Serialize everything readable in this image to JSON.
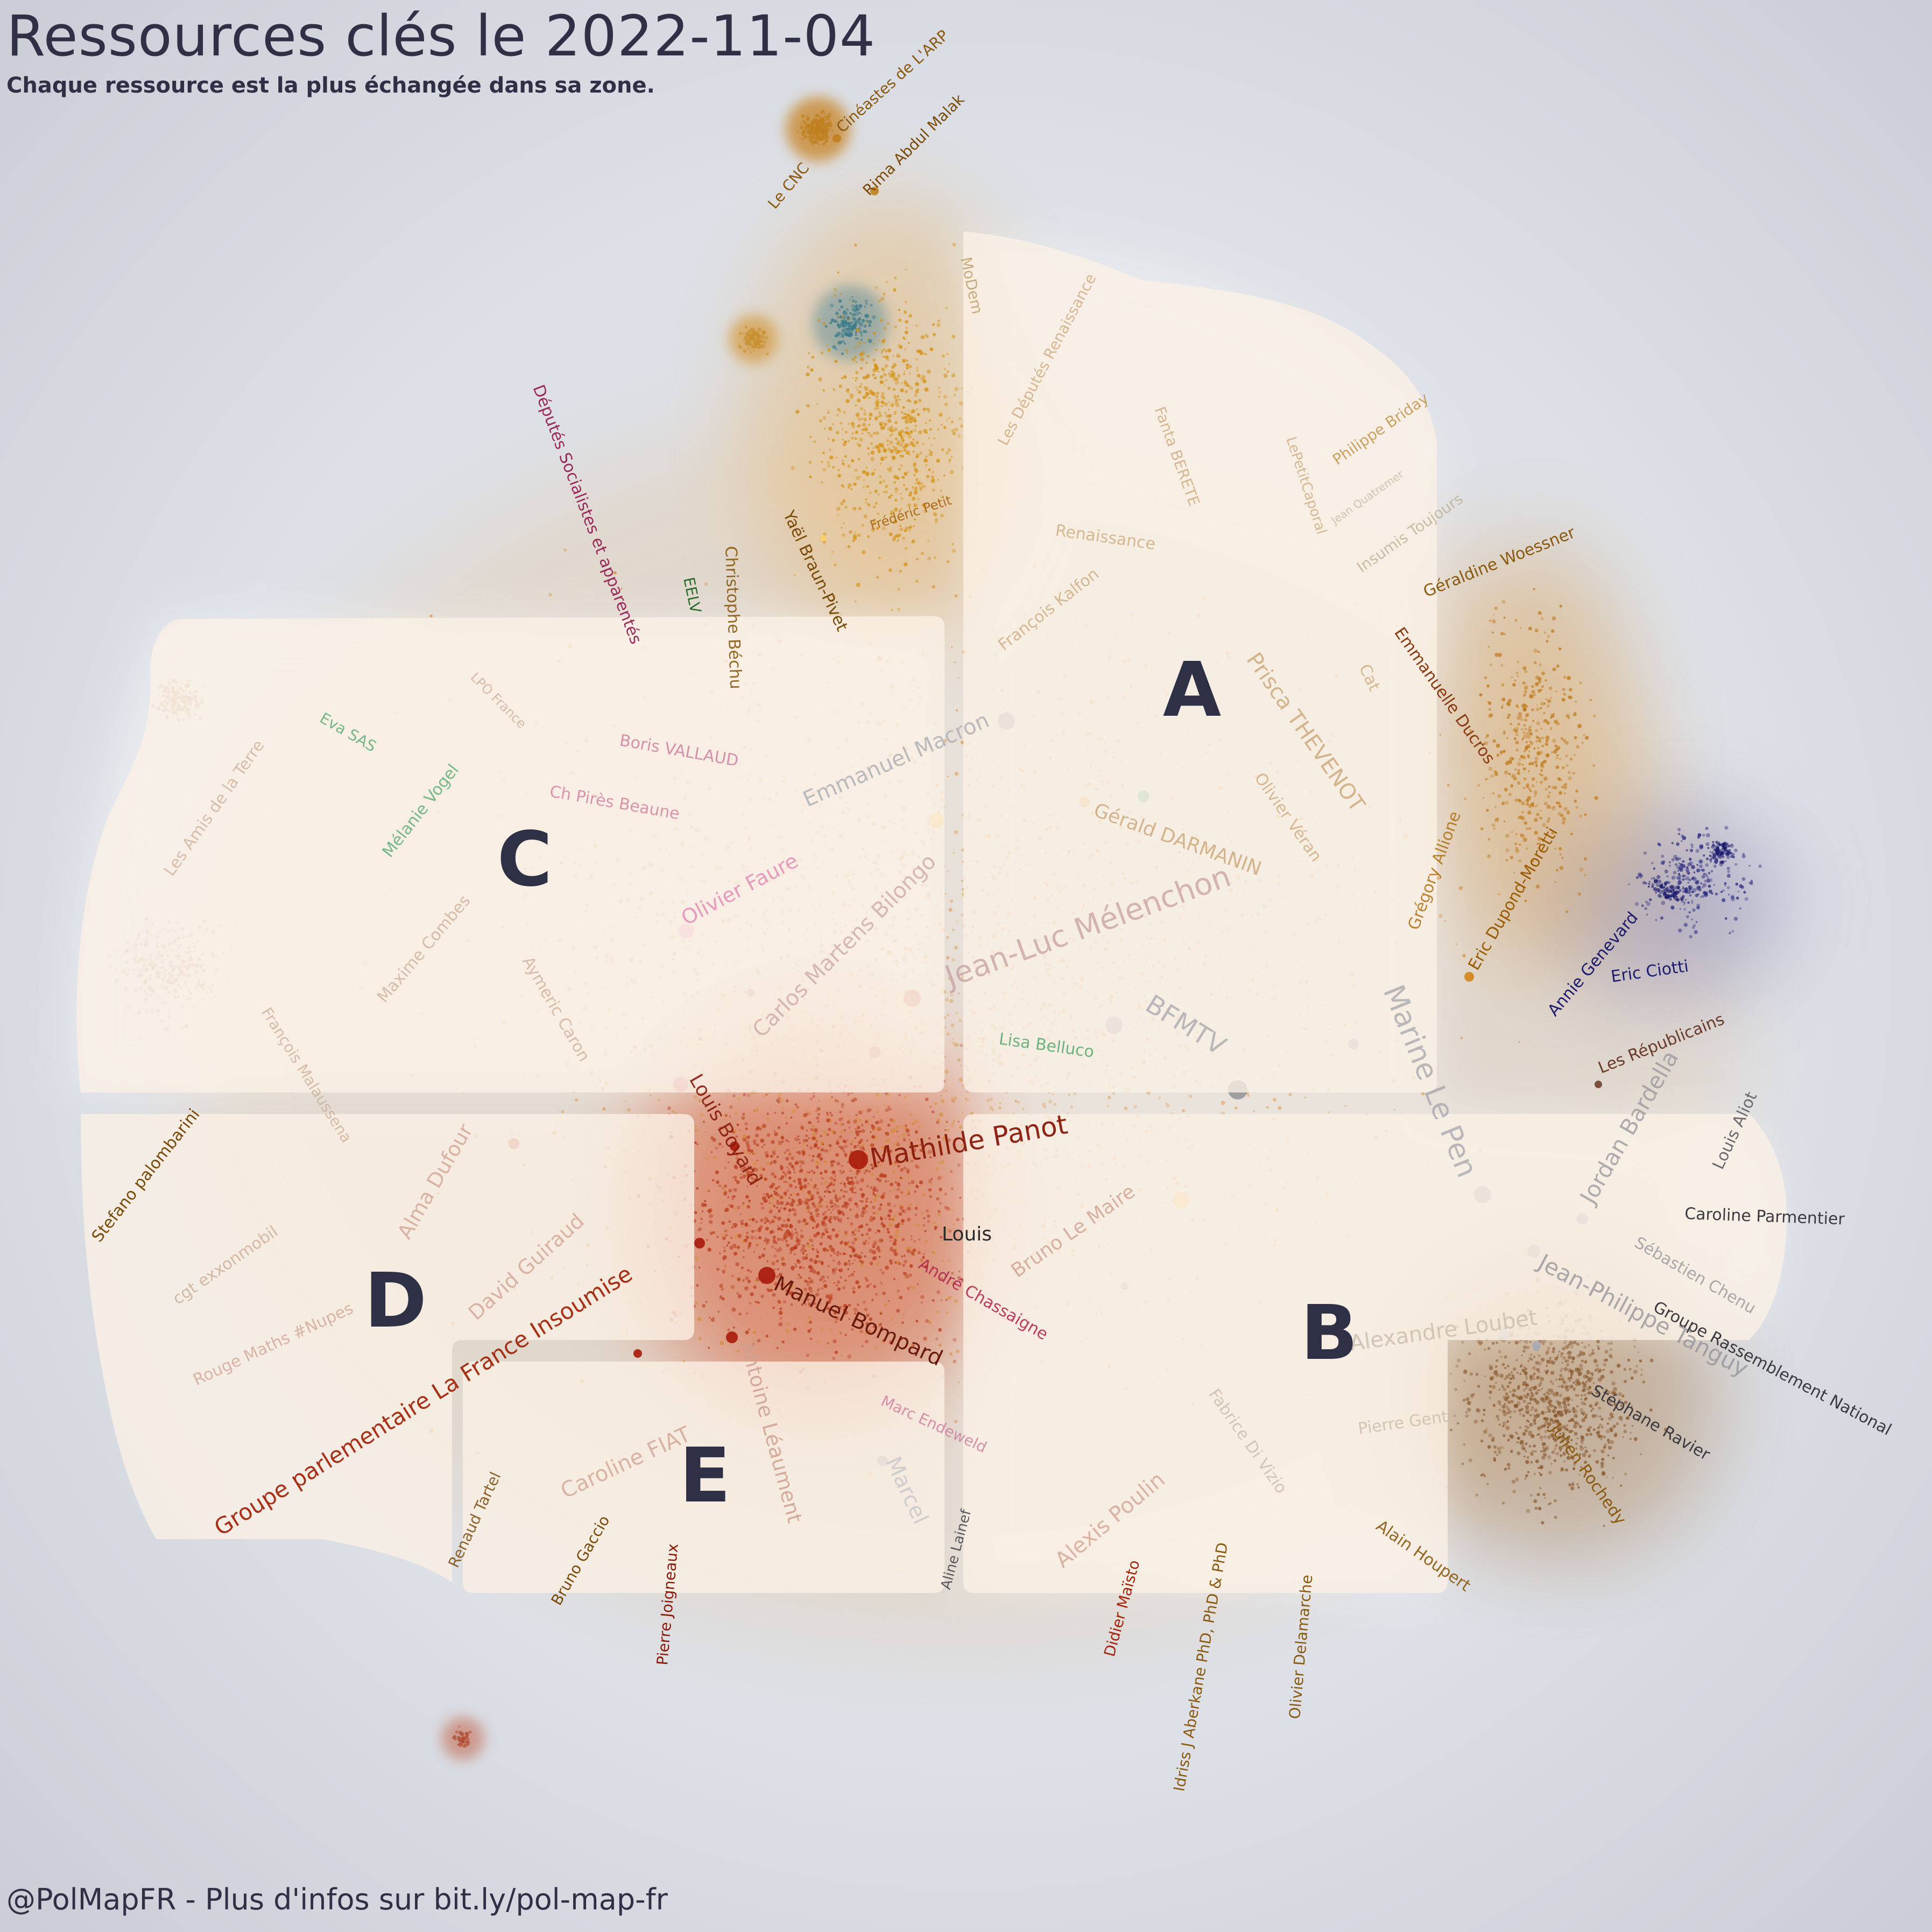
{
  "title": "Ressources clés le 2022-11-04",
  "subtitle": "Chaque ressource est la plus échangée dans sa zone.",
  "credit": "@PolMapFR - Plus d'infos sur bit.ly/pol-map-fr",
  "colors": {
    "background": "#d3d7de",
    "text": "#2e3145",
    "accent_orange": "#d4800e",
    "accent_red": "#a3260c",
    "accent_navy": "#1c1b6e",
    "accent_green": "#2a8a3e",
    "accent_pink": "#9a2a5c"
  },
  "zones": [
    {
      "letter": "A"
    },
    {
      "letter": "B"
    },
    {
      "letter": "C"
    },
    {
      "letter": "D"
    },
    {
      "letter": "E"
    }
  ],
  "labels": [
    "Cinéastes de L'ARP",
    "Rima Abdul Malak",
    "Le CNC",
    "MoDem",
    "Les Députés Renaissance",
    "Fanta BERETE",
    "LePetitCaporal",
    "Philippe Briday",
    "Jean Quatremer",
    "Insumis Toujours",
    "Géraldine Woessner",
    "Renaissance",
    "François Kalfon",
    "Frédéric Petit",
    "Yaël Braun-Pivet",
    "Députés Socialistes et apparentés",
    "EELV",
    "Christophe Béchu",
    "Cat",
    "Emmanuelle Ducros",
    "Prisca THEVENOT",
    "Emmanuel Macron",
    "Olivier Véran",
    "Gérald DARMANIN",
    "Grégory Allione",
    "Eric Dupond-Moretti",
    "Annie Genevard",
    "Eric Ciotti",
    "Les Républicains",
    "Jean-Luc Mélenchon",
    "Marine Le Pen",
    "BFMTV",
    "Lisa Belluco",
    "Jordan Bardella",
    "Louis Aliot",
    "Caroline Parmentier",
    "Sébastien Chenu",
    "Jean-Philippe Tanguy",
    "Groupe Rassemblement National",
    "Stéphane Ravier",
    "Julien Rochedy",
    "Les Amis de la Terre",
    "Eva SAS",
    "LPO France",
    "Mélanie Vogel",
    "Boris VALLAUD",
    "Ch Pirès Beaune",
    "Olivier Faure",
    "Carlos Martens Bilongo",
    "Maxime Combes",
    "Aymeric Caron",
    "François Malaussena",
    "Stefano palombarini",
    "Alma Dufour",
    "cgt exxonmobil",
    "David Guiraud",
    "Rouge Maths #Nupes",
    "Louis Boyard",
    "Mathilde Panot",
    "Bruno Le Maire",
    "Louis",
    "André Chassaigne",
    "Manuel Bompard",
    "Antoine Léaument",
    "Groupe parlementaire La France Insoumise",
    "Marc Endeweld",
    "Caroline FIAT",
    "Marcel",
    "Renaud Tartel",
    "Bruno Gaccio",
    "Pierre Joigneaux",
    "Aline Lainef",
    "Alexis Poulin",
    "Fabrice Di Vizio",
    "Pierre Gentillet",
    "Alexandre Loubet",
    "Alain Houpert",
    "Didier Maïsto",
    "Idriss J Aberkane PhD, PhD & PhD",
    "Olivier Delamarche"
  ]
}
